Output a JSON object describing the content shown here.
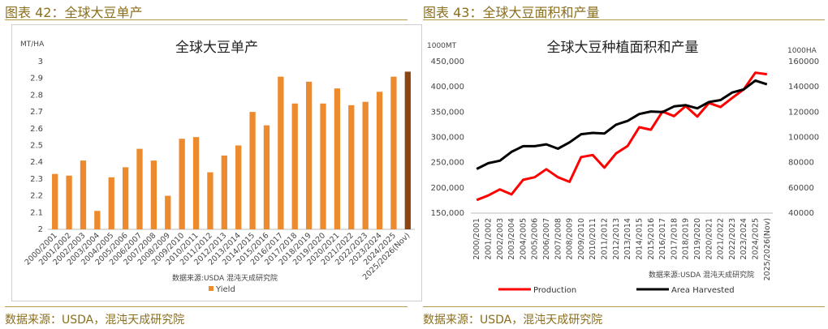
{
  "left_figure": {
    "caption": "图表 42：全球大豆单产",
    "source": "数据来源：USDA，混沌天成研究院"
  },
  "right_figure": {
    "caption": "图表 43：全球大豆面积和产量",
    "source": "数据来源：USDA，混沌天成研究院"
  },
  "chart_data": [
    {
      "type": "bar",
      "title": "全球大豆单产",
      "ylabel": "MT/HA",
      "xlabel": "",
      "ylim": [
        2,
        3
      ],
      "yticks": [
        "2",
        "2.1",
        "2.2",
        "2.3",
        "2.4",
        "2.5",
        "2.6",
        "2.7",
        "2.8",
        "2.9",
        "3"
      ],
      "categories": [
        "2000/2001",
        "2001/2002",
        "2002/2003",
        "2003/2004",
        "2004/2005",
        "2005/2006",
        "2006/2007",
        "2007/2008",
        "2008/2009",
        "2009/2010",
        "2010/2011",
        "2011/2012",
        "2012/2013",
        "2013/2014",
        "2014/2015",
        "2015/2016",
        "2016/2017",
        "2017/2018",
        "2018/2019",
        "2019/2020",
        "2020/2021",
        "2021/2022",
        "2022/2023",
        "2023/2024",
        "2024/2025",
        "2025/2026(Nov)"
      ],
      "series": [
        {
          "name": "Yield",
          "color": "#ee8a2e",
          "highlight_color": "#8b4513",
          "values": [
            2.33,
            2.32,
            2.41,
            2.11,
            2.31,
            2.37,
            2.48,
            2.41,
            2.2,
            2.54,
            2.55,
            2.34,
            2.44,
            2.5,
            2.7,
            2.62,
            2.91,
            2.75,
            2.88,
            2.75,
            2.84,
            2.74,
            2.76,
            2.82,
            2.91,
            2.94
          ]
        }
      ],
      "source_note": "数据来源:USDA  混沌天成研究院",
      "legend": "bottom"
    },
    {
      "type": "line",
      "title": "全球大豆种植面积和产量",
      "left_axis_label": "1000MT",
      "right_axis_label": "1000HA",
      "left_ylim": [
        150000,
        450000
      ],
      "right_ylim": [
        40000,
        160000
      ],
      "left_ticks": [
        "150,000",
        "200,000",
        "250,000",
        "300,000",
        "350,000",
        "400,000",
        "450,000"
      ],
      "right_ticks": [
        "40000",
        "60000",
        "80000",
        "100000",
        "120000",
        "140000",
        "160000"
      ],
      "categories": [
        "2000/2001",
        "2001/2002",
        "2002/2003",
        "2003/2004",
        "2004/2005",
        "2005/2006",
        "2006/2007",
        "2007/2008",
        "2008/2009",
        "2009/2010",
        "2010/2011",
        "2011/2012",
        "2012/2013",
        "2013/2014",
        "2014/2015",
        "2015/2016",
        "2016/2017",
        "2017/2018",
        "2018/2019",
        "2019/2020",
        "2020/2021",
        "2021/2022",
        "2022/2023",
        "2023/2024",
        "2024/2025",
        "2025/2026(Nov)"
      ],
      "series": [
        {
          "name": "Production",
          "axis": "left",
          "color": "#ff0000",
          "values": [
            176000,
            185000,
            197000,
            187000,
            216000,
            221000,
            237000,
            221000,
            212000,
            261000,
            265000,
            240000,
            268000,
            283000,
            320000,
            315000,
            351000,
            342000,
            362000,
            341000,
            368000,
            360000,
            378000,
            395000,
            428000,
            425000
          ]
        },
        {
          "name": "Area Harvested",
          "axis": "right",
          "color": "#000000",
          "values": [
            75000,
            79500,
            81500,
            88500,
            93000,
            93000,
            94500,
            91000,
            96000,
            102500,
            103500,
            103000,
            110000,
            113000,
            118500,
            120500,
            120000,
            124500,
            125500,
            123000,
            128000,
            129500,
            135500,
            138000,
            145000,
            142000
          ]
        }
      ],
      "source_note": "数据来源:USDA  混沌天成研究院",
      "legend": "bottom"
    }
  ]
}
